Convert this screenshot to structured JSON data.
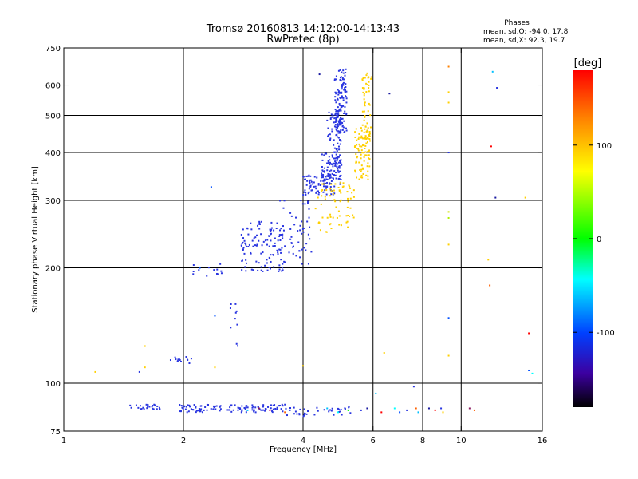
{
  "header": {
    "title_line1": "Tromsø 20160813 14:12:00-14:13:43",
    "title_line2": "RwPretec (8p)"
  },
  "stats": {
    "heading": "Phases",
    "line_o": "mean, sd,O: -94.0, 17.8",
    "line_x": "mean, sd,X:  92.3, 19.7"
  },
  "chart_data": {
    "type": "scatter",
    "title": "Tromsø 20160813 14:12:00-14:13:43",
    "subtitle": "RwPretec (8p)",
    "xlabel": "Frequency [MHz]",
    "ylabel": "Stationary phase Virtual Height [km]",
    "x_scale": "log",
    "y_scale": "log",
    "xlim": [
      1,
      16
    ],
    "ylim": [
      75,
      750
    ],
    "x_ticks": [
      1,
      2,
      4,
      6,
      8,
      10,
      16
    ],
    "y_ticks": [
      75,
      100,
      200,
      300,
      400,
      500,
      600,
      750
    ],
    "x_vertical_gridlines": [
      2,
      4,
      6,
      8,
      10
    ],
    "y_horizontal_gridlines": [
      100,
      200,
      300,
      400,
      500,
      600
    ],
    "colorbar": {
      "label": "[deg]",
      "range": [
        -180,
        180
      ],
      "ticks": [
        100,
        0,
        -100
      ],
      "colors": [
        "#ff0000",
        "#ff8000",
        "#ffff00",
        "#00ff00",
        "#00ffff",
        "#0040ff",
        "#3c00a0",
        "#000000"
      ]
    },
    "series": [
      {
        "color": "#2a36e0",
        "segments": [
          {
            "f": [
              3.5,
              4.2
            ],
            "h": [
              200,
              310
            ],
            "n": 55
          },
          {
            "f": [
              4.0,
              4.8
            ],
            "h": [
              310,
              350
            ],
            "n": 80
          },
          {
            "f": [
              4.6,
              5.0
            ],
            "h": [
              340,
              520
            ],
            "n": 110
          },
          {
            "f": [
              4.8,
              5.15
            ],
            "h": [
              450,
              660
            ],
            "n": 120
          },
          {
            "f": [
              4.45,
              5.0
            ],
            "h": [
              330,
              400
            ],
            "n": 60
          },
          {
            "f": [
              2.8,
              3.6
            ],
            "h": [
              195,
              265
            ],
            "n": 120
          },
          {
            "f": [
              2.1,
              2.5
            ],
            "h": [
              190,
              205
            ],
            "n": 14
          },
          {
            "f": [
              1.85,
              2.1
            ],
            "h": [
              112,
              118
            ],
            "n": 14
          },
          {
            "f": [
              2.6,
              2.85
            ],
            "h": [
              125,
              165
            ],
            "n": 10
          },
          {
            "f": [
              1.45,
              1.75
            ],
            "h": [
              85,
              88
            ],
            "n": 24
          },
          {
            "f": [
              1.95,
              3.6
            ],
            "h": [
              84,
              88
            ],
            "n": 120
          },
          {
            "f": [
              3.6,
              5.3
            ],
            "h": [
              82,
              87
            ],
            "n": 40
          }
        ]
      },
      {
        "color": "#ffd000",
        "segments": [
          {
            "f": [
              4.3,
              5.4
            ],
            "h": [
              245,
              335
            ],
            "n": 70
          },
          {
            "f": [
              5.4,
              5.9
            ],
            "h": [
              340,
              470
            ],
            "n": 90
          },
          {
            "f": [
              5.6,
              5.95
            ],
            "h": [
              430,
              650
            ],
            "n": 50
          }
        ]
      }
    ],
    "scattered_points": [
      {
        "f": 2.35,
        "h": 325,
        "color": "#0050ff"
      },
      {
        "f": 4.4,
        "h": 640,
        "color": "#1a1aa0"
      },
      {
        "f": 6.6,
        "h": 570,
        "color": "#1a1aa0"
      },
      {
        "f": 9.3,
        "h": 670,
        "color": "#ff8000"
      },
      {
        "f": 9.3,
        "h": 575,
        "color": "#ffd000"
      },
      {
        "f": 9.3,
        "h": 540,
        "color": "#ffd000"
      },
      {
        "f": 9.3,
        "h": 400,
        "color": "#2a36e0"
      },
      {
        "f": 9.3,
        "h": 280,
        "color": "#d0e000"
      },
      {
        "f": 9.3,
        "h": 270,
        "color": "#b0f000"
      },
      {
        "f": 9.3,
        "h": 230,
        "color": "#ffd000"
      },
      {
        "f": 9.3,
        "h": 148,
        "color": "#0050ff"
      },
      {
        "f": 9.3,
        "h": 118,
        "color": "#ffd000"
      },
      {
        "f": 12.0,
        "h": 650,
        "color": "#00c0ff"
      },
      {
        "f": 12.3,
        "h": 590,
        "color": "#2a36e0"
      },
      {
        "f": 11.9,
        "h": 415,
        "color": "#ff0000"
      },
      {
        "f": 12.2,
        "h": 305,
        "color": "#1a1aa0"
      },
      {
        "f": 14.5,
        "h": 305,
        "color": "#ffd000"
      },
      {
        "f": 11.7,
        "h": 210,
        "color": "#ffd000"
      },
      {
        "f": 11.8,
        "h": 180,
        "color": "#ff6000"
      },
      {
        "f": 14.8,
        "h": 135,
        "color": "#ff0000"
      },
      {
        "f": 14.8,
        "h": 108,
        "color": "#0050ff"
      },
      {
        "f": 15.1,
        "h": 106,
        "color": "#00ffff"
      },
      {
        "f": 1.2,
        "h": 107,
        "color": "#ffd000"
      },
      {
        "f": 1.55,
        "h": 107,
        "color": "#2a36e0"
      },
      {
        "f": 1.6,
        "h": 110,
        "color": "#ffd000"
      },
      {
        "f": 1.6,
        "h": 125,
        "color": "#ffd000"
      },
      {
        "f": 2.4,
        "h": 110,
        "color": "#ffd000"
      },
      {
        "f": 2.4,
        "h": 150,
        "color": "#0050ff"
      },
      {
        "f": 2.2,
        "h": 200,
        "color": "#0050ff"
      },
      {
        "f": 4.0,
        "h": 111,
        "color": "#ffd000"
      },
      {
        "f": 6.4,
        "h": 120,
        "color": "#ffd000"
      },
      {
        "f": 7.6,
        "h": 98,
        "color": "#2a36e0"
      },
      {
        "f": 6.1,
        "h": 94,
        "color": "#00c0ff"
      },
      {
        "f": 6.3,
        "h": 84,
        "color": "#ff0000"
      },
      {
        "f": 6.8,
        "h": 86,
        "color": "#00ffff"
      },
      {
        "f": 7.0,
        "h": 84,
        "color": "#0050ff"
      },
      {
        "f": 7.3,
        "h": 85,
        "color": "#2a36e0"
      },
      {
        "f": 7.7,
        "h": 86,
        "color": "#ff6000"
      },
      {
        "f": 7.8,
        "h": 84,
        "color": "#00c0ff"
      },
      {
        "f": 8.3,
        "h": 86,
        "color": "#1a1aa0"
      },
      {
        "f": 8.6,
        "h": 85,
        "color": "#ff0000"
      },
      {
        "f": 8.9,
        "h": 86,
        "color": "#2a36e0"
      },
      {
        "f": 9.0,
        "h": 84,
        "color": "#ffd000"
      },
      {
        "f": 10.5,
        "h": 86,
        "color": "#8a1a60"
      },
      {
        "f": 10.8,
        "h": 85,
        "color": "#ff6000"
      },
      {
        "f": 5.8,
        "h": 86,
        "color": "#1a1aa0"
      },
      {
        "f": 5.6,
        "h": 85,
        "color": "#2a36e0"
      },
      {
        "f": 5.2,
        "h": 85,
        "color": "#00ff00"
      },
      {
        "f": 4.6,
        "h": 86,
        "color": "#00c0ff"
      },
      {
        "f": 4.9,
        "h": 84,
        "color": "#00ffff"
      },
      {
        "f": 3.1,
        "h": 86,
        "color": "#8a1a60"
      },
      {
        "f": 3.3,
        "h": 85,
        "color": "#d01060"
      },
      {
        "f": 3.6,
        "h": 84,
        "color": "#ff6000"
      },
      {
        "f": 2.9,
        "h": 85,
        "color": "#00c0ff"
      }
    ]
  }
}
